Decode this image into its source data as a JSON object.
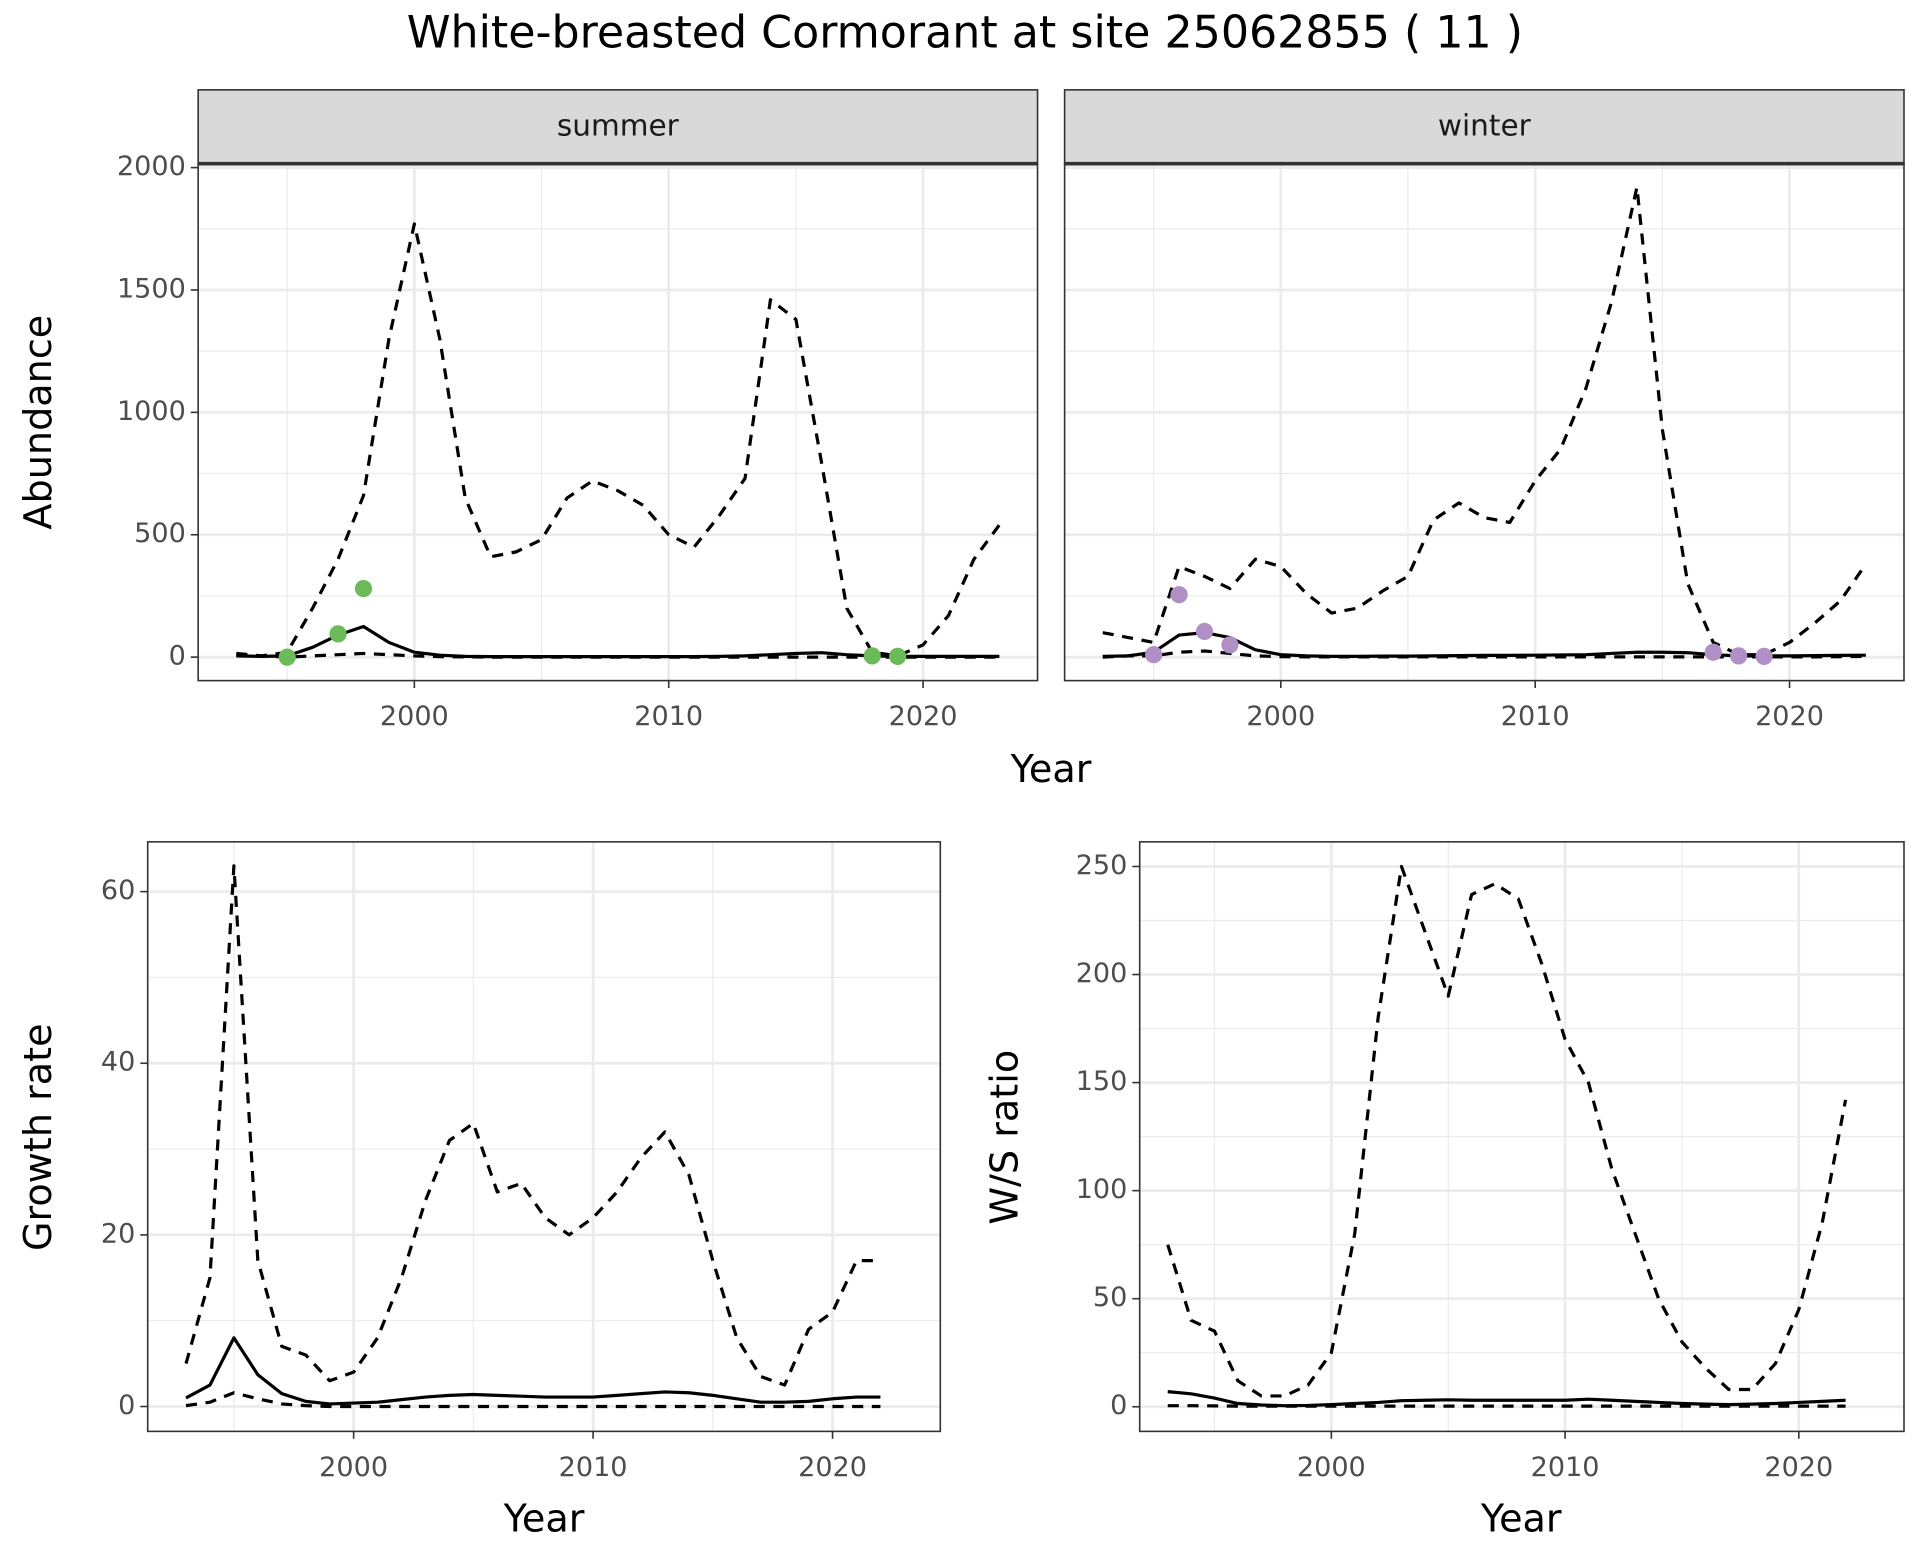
{
  "title": "White-breasted Cormorant at site 25062855 ( 11 )",
  "chart_data": [
    {
      "type": "line",
      "strip": "summer",
      "ylabel": "Abundance",
      "xlabel": "Year",
      "xlim": [
        1991.5,
        2024.5
      ],
      "xticks": [
        2000,
        2010,
        2020
      ],
      "ylim": [
        -96,
        2016
      ],
      "yticks": [
        0,
        500,
        1000,
        1500,
        2000
      ],
      "grid": true,
      "x": [
        1993,
        1994,
        1995,
        1996,
        1997,
        1998,
        1999,
        2000,
        2001,
        2002,
        2003,
        2004,
        2005,
        2006,
        2007,
        2008,
        2009,
        2010,
        2011,
        2012,
        2013,
        2014,
        2015,
        2016,
        2017,
        2018,
        2019,
        2020,
        2021,
        2022,
        2023
      ],
      "series": [
        {
          "color": "#000000",
          "dashed": true,
          "values": [
            10,
            5,
            20,
            200,
            400,
            660,
            1300,
            1770,
            1300,
            650,
            410,
            430,
            480,
            650,
            720,
            680,
            620,
            500,
            450,
            580,
            730,
            1460,
            1380,
            800,
            200,
            20,
            5,
            50,
            170,
            400,
            540
          ]
        },
        {
          "color": "#000000",
          "dashed": true,
          "values": [
            15,
            5,
            0,
            5,
            10,
            15,
            10,
            5,
            2,
            1,
            0,
            0,
            0,
            0,
            0,
            0,
            0,
            0,
            0,
            0,
            0,
            0,
            0,
            0,
            0,
            0,
            0,
            0,
            0,
            0,
            0
          ]
        },
        {
          "color": "#000000",
          "dashed": false,
          "values": [
            5,
            3,
            5,
            40,
            90,
            125,
            60,
            20,
            8,
            3,
            2,
            2,
            2,
            2,
            2,
            2,
            2,
            2,
            2,
            3,
            5,
            10,
            15,
            18,
            10,
            5,
            3,
            3,
            3,
            3,
            3
          ]
        }
      ],
      "points": {
        "color": "#6cbb5a",
        "x": [
          1995,
          1997,
          1998,
          2018,
          2019
        ],
        "values": [
          0,
          95,
          280,
          5,
          3
        ]
      }
    },
    {
      "type": "line",
      "strip": "winter",
      "xlim": [
        1991.5,
        2024.5
      ],
      "xticks": [
        2000,
        2010,
        2020
      ],
      "ylim": [
        -96,
        2016
      ],
      "yticks": [
        0,
        500,
        1000,
        1500,
        2000
      ],
      "grid": true,
      "x": [
        1993,
        1994,
        1995,
        1996,
        1997,
        1998,
        1999,
        2000,
        2001,
        2002,
        2003,
        2004,
        2005,
        2006,
        2007,
        2008,
        2009,
        2010,
        2011,
        2012,
        2013,
        2014,
        2015,
        2016,
        2017,
        2018,
        2019,
        2020,
        2021,
        2022,
        2023
      ],
      "series": [
        {
          "color": "#000000",
          "dashed": true,
          "values": [
            100,
            80,
            60,
            370,
            330,
            280,
            400,
            370,
            260,
            180,
            200,
            270,
            330,
            560,
            630,
            570,
            550,
            720,
            850,
            1100,
            1450,
            1920,
            930,
            300,
            60,
            10,
            10,
            60,
            140,
            230,
            380
          ]
        },
        {
          "color": "#000000",
          "dashed": true,
          "values": [
            0,
            5,
            5,
            20,
            25,
            15,
            5,
            2,
            1,
            1,
            1,
            1,
            1,
            1,
            1,
            1,
            1,
            1,
            1,
            1,
            1,
            1,
            1,
            1,
            1,
            1,
            1,
            1,
            1,
            2,
            3
          ]
        },
        {
          "color": "#000000",
          "dashed": false,
          "values": [
            3,
            5,
            20,
            90,
            100,
            80,
            30,
            10,
            5,
            3,
            3,
            4,
            4,
            5,
            6,
            7,
            7,
            8,
            9,
            10,
            15,
            20,
            20,
            18,
            10,
            5,
            5,
            5,
            6,
            7,
            8
          ]
        }
      ],
      "points": {
        "color": "#b08fc7",
        "x": [
          1995,
          1996,
          1997,
          1998,
          2017,
          2018,
          2019
        ],
        "values": [
          10,
          255,
          105,
          50,
          20,
          5,
          3
        ]
      }
    },
    {
      "type": "line",
      "ylabel": "Growth rate",
      "xlabel": "Year",
      "xlim": [
        1991.4,
        2024.5
      ],
      "xticks": [
        2000,
        2010,
        2020
      ],
      "ylim": [
        -2.9,
        65.8
      ],
      "yticks": [
        0,
        20,
        40,
        60
      ],
      "grid": true,
      "x": [
        1993,
        1994,
        1995,
        1996,
        1997,
        1998,
        1999,
        2000,
        2001,
        2002,
        2003,
        2004,
        2005,
        2006,
        2007,
        2008,
        2009,
        2010,
        2011,
        2012,
        2013,
        2014,
        2015,
        2016,
        2017,
        2018,
        2019,
        2020,
        2021,
        2022
      ],
      "series": [
        {
          "color": "#000000",
          "dashed": true,
          "values": [
            5,
            15,
            63,
            17,
            7,
            6,
            3,
            4,
            8,
            15,
            24,
            31,
            33,
            25,
            26,
            22,
            20,
            22,
            25,
            29,
            32,
            27,
            17,
            8,
            3.5,
            2.5,
            9,
            11,
            17,
            17
          ]
        },
        {
          "color": "#000000",
          "dashed": true,
          "values": [
            0.1,
            0.5,
            1.6,
            0.9,
            0.3,
            0.1,
            0,
            0,
            0,
            0,
            0,
            0,
            0,
            0,
            0,
            0,
            0,
            0,
            0,
            0,
            0,
            0,
            0,
            0,
            0,
            0,
            0,
            0,
            0,
            0
          ]
        },
        {
          "color": "#000000",
          "dashed": false,
          "values": [
            1,
            2.5,
            8,
            3.7,
            1.5,
            0.6,
            0.3,
            0.4,
            0.5,
            0.8,
            1.1,
            1.3,
            1.4,
            1.3,
            1.2,
            1.1,
            1.1,
            1.1,
            1.3,
            1.5,
            1.7,
            1.6,
            1.3,
            0.9,
            0.5,
            0.5,
            0.6,
            0.9,
            1.1,
            1.1
          ]
        }
      ]
    },
    {
      "type": "line",
      "ylabel": "W/S ratio",
      "xlabel": "Year",
      "xlim": [
        1991.8,
        2024.5
      ],
      "xticks": [
        2000,
        2010,
        2020
      ],
      "ylim": [
        -11.4,
        261.4
      ],
      "yticks": [
        0,
        50,
        100,
        150,
        200,
        250
      ],
      "grid": true,
      "x": [
        1993,
        1994,
        1995,
        1996,
        1997,
        1998,
        1999,
        2000,
        2001,
        2002,
        2003,
        2004,
        2005,
        2006,
        2007,
        2008,
        2009,
        2010,
        2011,
        2012,
        2013,
        2014,
        2015,
        2016,
        2017,
        2018,
        2019,
        2020,
        2021,
        2022
      ],
      "series": [
        {
          "color": "#000000",
          "dashed": true,
          "values": [
            75,
            40,
            35,
            12,
            5,
            5,
            10,
            25,
            80,
            180,
            250,
            220,
            190,
            237,
            242,
            235,
            205,
            170,
            150,
            110,
            80,
            50,
            30,
            18,
            8,
            8,
            20,
            45,
            85,
            142
          ]
        },
        {
          "color": "#000000",
          "dashed": true,
          "values": [
            0.5,
            0.5,
            0.4,
            0.3,
            0.3,
            0.3,
            0.3,
            0.3,
            0.3,
            0.3,
            0.3,
            0.3,
            0.3,
            0.3,
            0.3,
            0.3,
            0.3,
            0.3,
            0.3,
            0.3,
            0.3,
            0.3,
            0.3,
            0.3,
            0.3,
            0.3,
            0.3,
            0.3,
            0.3,
            0.3
          ]
        },
        {
          "color": "#000000",
          "dashed": false,
          "values": [
            7,
            6,
            4,
            1.5,
            0.8,
            0.5,
            0.6,
            1,
            1.5,
            2,
            2.8,
            3,
            3.2,
            3,
            3,
            3,
            3,
            3,
            3.5,
            3,
            2.5,
            2,
            1.5,
            1.2,
            1,
            1.2,
            1.5,
            2,
            2.5,
            3
          ]
        }
      ]
    }
  ]
}
